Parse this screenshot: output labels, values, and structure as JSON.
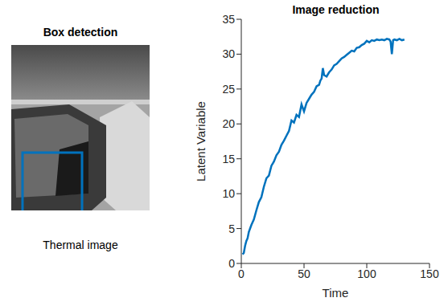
{
  "image_panel": {
    "title": "Box detection",
    "caption": "Thermal image"
  },
  "chart_data": {
    "type": "line",
    "title": "Image reduction",
    "x_label": "Time",
    "y_label": "Latent Variable",
    "x": [
      1,
      2,
      3,
      4,
      5,
      6,
      8,
      10,
      12,
      14,
      16,
      18,
      20,
      22,
      24,
      26,
      28,
      30,
      32,
      34,
      36,
      38,
      40,
      42,
      44,
      46,
      48,
      50,
      52,
      54,
      56,
      58,
      60,
      62,
      63,
      64,
      65,
      66,
      68,
      70,
      72,
      74,
      76,
      78,
      80,
      82,
      84,
      86,
      88,
      90,
      92,
      94,
      96,
      98,
      100,
      102,
      104,
      106,
      108,
      110,
      112,
      114,
      116,
      118,
      119,
      120,
      121,
      122,
      124,
      126,
      128,
      130
    ],
    "values": [
      1.3,
      1.5,
      2.5,
      3.2,
      3.6,
      4.5,
      5.5,
      6.3,
      7.6,
      8.8,
      9.5,
      11.0,
      12.2,
      12.6,
      14.0,
      14.6,
      15.5,
      16.0,
      17.0,
      17.6,
      18.3,
      19.0,
      20.5,
      20.2,
      21.3,
      21.0,
      22.8,
      21.8,
      23.0,
      23.6,
      24.2,
      24.6,
      25.4,
      25.6,
      26.2,
      26.5,
      28.0,
      27.0,
      26.8,
      27.4,
      27.8,
      28.4,
      28.6,
      29.0,
      29.4,
      29.6,
      29.9,
      30.2,
      30.5,
      30.4,
      30.9,
      31.0,
      31.3,
      31.5,
      31.9,
      31.7,
      32.0,
      31.9,
      32.1,
      32.0,
      32.1,
      32.0,
      32.2,
      32.1,
      31.8,
      30.0,
      32.0,
      32.1,
      32.0,
      32.2,
      32.0,
      32.1
    ],
    "color": "#0072bd",
    "xlim": [
      0,
      150
    ],
    "ylim": [
      0,
      35
    ],
    "xticks": [
      0,
      50,
      100,
      150
    ],
    "yticks": [
      0,
      5,
      10,
      15,
      20,
      25,
      30,
      35
    ],
    "grid": false
  }
}
